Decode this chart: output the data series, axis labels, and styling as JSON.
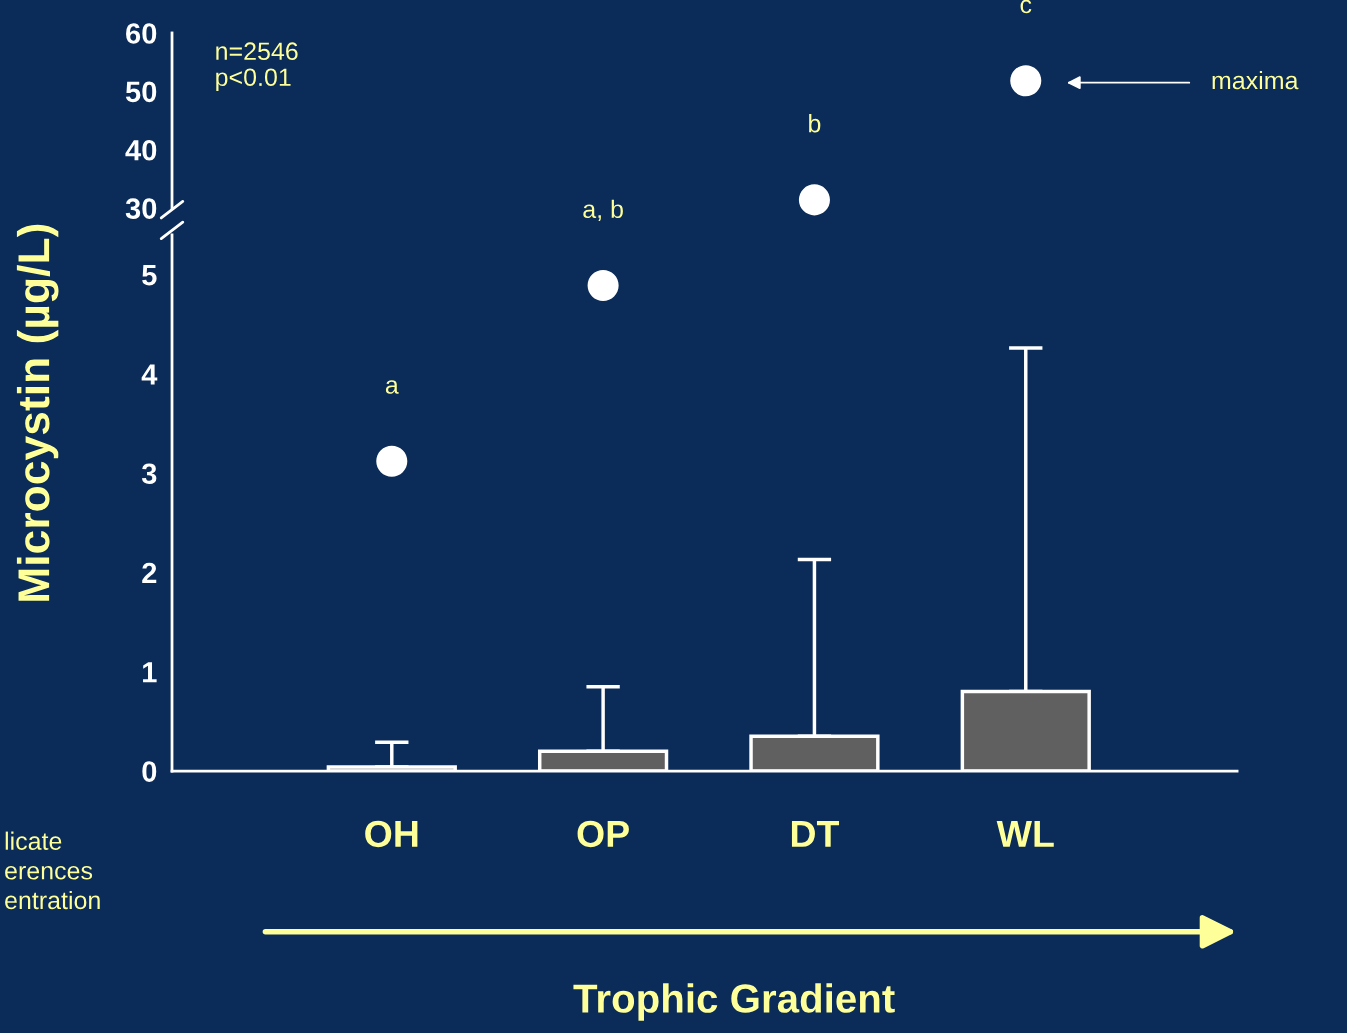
{
  "chart_data": [
    {
      "type": "scatter",
      "categories": [
        "OH",
        "OP",
        "DT",
        "WL"
      ],
      "ylim": [
        30,
        60
      ],
      "yticks": [
        30,
        40,
        50,
        60
      ],
      "tick_labels": "y",
      "grid": false,
      "series": [
        {
          "color": "#ffffff",
          "values": [
            null,
            null,
            31.4,
            51.8
          ]
        }
      ],
      "annotations": [
        "n=2546\np<0.01",
        {
          "text": "b",
          "x": "DT",
          "y": 31.4
        },
        {
          "text": "c",
          "x": "WL",
          "y": 51.8
        },
        "maxima"
      ]
    },
    {
      "type": "bar",
      "categories": [
        "OH",
        "OP",
        "DT",
        "WL"
      ],
      "ylim": [
        0,
        5.4
      ],
      "yticks": [
        0,
        1,
        2,
        3,
        4,
        5
      ],
      "grid": false,
      "ylabel": "Microcystin (µg/L)",
      "xlabel": "Trophic Gradient",
      "series": [
        {
          "color": "#606060",
          "values": [
            0.04,
            0.2,
            0.35,
            0.8
          ],
          "errors": [
            [
              0.04,
              0.29
            ],
            [
              0.2,
              0.85
            ],
            [
              0.35,
              2.13
            ],
            [
              0.8,
              4.26
            ]
          ]
        },
        {
          "type": "scatter",
          "color": "#ffffff",
          "values": [
            3.12,
            4.89,
            null,
            null
          ]
        }
      ],
      "annotations": [
        "licate\nerences\nentration",
        {
          "text": "a",
          "x": "OH",
          "y": 3.12
        },
        {
          "text": "a, b",
          "x": "OP",
          "y": 4.89
        }
      ]
    }
  ]
}
